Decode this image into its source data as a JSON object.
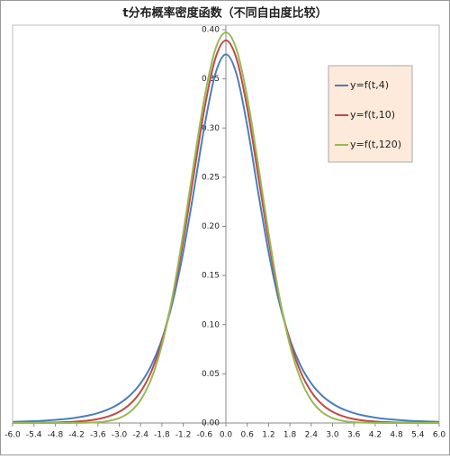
{
  "chart_data": {
    "type": "line",
    "title": "t分布概率密度函数（不同自由度比较）",
    "x": [
      -6.0,
      -5.7,
      -5.4,
      -5.1,
      -4.8,
      -4.5,
      -4.2,
      -3.9,
      -3.6,
      -3.3,
      -3.0,
      -2.7,
      -2.4,
      -2.1,
      -1.8,
      -1.5,
      -1.2,
      -0.9,
      -0.6,
      -0.3,
      0.0,
      0.3,
      0.6,
      0.9,
      1.2,
      1.5,
      1.8,
      2.1,
      2.4,
      2.7,
      3.0,
      3.3,
      3.6,
      3.9,
      4.2,
      4.5,
      4.8,
      5.1,
      5.4,
      5.7,
      6.0
    ],
    "series": [
      {
        "name": "y=f(t,4)",
        "color": "#4a7ebb",
        "values": [
          0.0012,
          0.0015,
          0.0019,
          0.0024,
          0.0032,
          0.0041,
          0.0055,
          0.0074,
          0.0101,
          0.014,
          0.0197,
          0.028,
          0.0403,
          0.0585,
          0.0851,
          0.1229,
          0.1739,
          0.2365,
          0.3023,
          0.3547,
          0.375,
          0.3547,
          0.3023,
          0.2365,
          0.1739,
          0.1229,
          0.0851,
          0.0585,
          0.0403,
          0.028,
          0.0197,
          0.014,
          0.0101,
          0.0074,
          0.0055,
          0.0041,
          0.0032,
          0.0024,
          0.0019,
          0.0015,
          0.0012
        ]
      },
      {
        "name": "y=f(t,10)",
        "color": "#be4b48",
        "values": [
          0.0001,
          0.0001,
          0.0002,
          0.0003,
          0.0005,
          0.0009,
          0.0015,
          0.0024,
          0.004,
          0.0068,
          0.0114,
          0.0191,
          0.0319,
          0.0522,
          0.0831,
          0.1274,
          0.1857,
          0.2535,
          0.3203,
          0.3704,
          0.3891,
          0.3704,
          0.3203,
          0.2535,
          0.1857,
          0.1274,
          0.0831,
          0.0522,
          0.0319,
          0.0191,
          0.0114,
          0.0068,
          0.004,
          0.0024,
          0.0015,
          0.0009,
          0.0005,
          0.0003,
          0.0002,
          0.0001,
          0.0001
        ]
      },
      {
        "name": "y=f(t,120)",
        "color": "#98b954",
        "values": [
          0,
          0,
          0,
          0,
          0,
          0,
          0.0001,
          0.0003,
          0.0008,
          0.0021,
          0.005,
          0.0112,
          0.0233,
          0.0448,
          0.0793,
          0.1291,
          0.1931,
          0.2644,
          0.3314,
          0.3797,
          0.3973,
          0.3797,
          0.3314,
          0.2644,
          0.1931,
          0.1291,
          0.0793,
          0.0448,
          0.0233,
          0.0112,
          0.005,
          0.0021,
          0.0008,
          0.0003,
          0.0001,
          0,
          0,
          0,
          0,
          0,
          0
        ]
      }
    ],
    "xlim": [
      -6.0,
      6.0
    ],
    "xticks": [
      {
        "value": -6.0,
        "label": "-6.0"
      },
      -5.4,
      -4.8,
      -4.2,
      -3.6,
      {
        "value": -3.0,
        "label": "-3.0"
      },
      -2.4,
      -1.8,
      -1.2,
      -0.6,
      {
        "value": 0,
        "label": "0.0"
      },
      0.6,
      1.2,
      1.8,
      2.4,
      {
        "value": 3.0,
        "label": "3.0"
      },
      3.6,
      4.2,
      4.8,
      5.4,
      {
        "value": 6.0,
        "label": "6.0"
      }
    ],
    "ylim": [
      0,
      0.4
    ],
    "yticks": [
      {
        "value": 0,
        "label": "0.00"
      },
      0.05,
      {
        "value": 0.1,
        "label": "0.10"
      },
      0.15,
      {
        "value": 0.2,
        "label": "0.20"
      },
      0.25,
      {
        "value": 0.3,
        "label": "0.30"
      },
      0.35,
      {
        "value": 0.4,
        "label": "0.40"
      }
    ],
    "legend": "right",
    "grid": false
  }
}
